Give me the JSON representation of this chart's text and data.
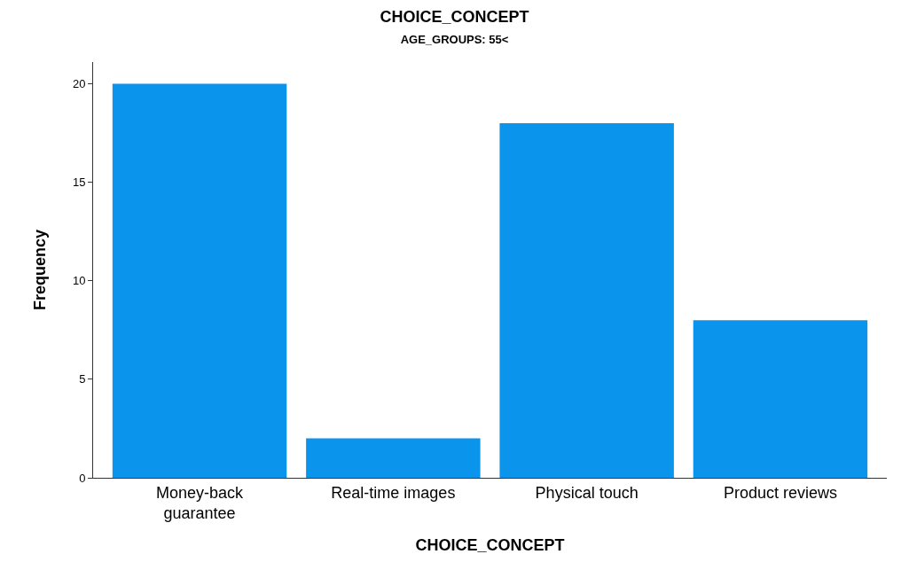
{
  "chart_data": {
    "type": "bar",
    "title": "CHOICE_CONCEPT",
    "subtitle": "AGE_GROUPS: 55<",
    "xlabel": "CHOICE_CONCEPT",
    "ylabel": "Frequency",
    "categories": [
      "Money-back\nguarantee",
      "Real-time images",
      "Physical touch",
      "Product reviews"
    ],
    "values": [
      20,
      2,
      18,
      8
    ],
    "color": "#0a94ec",
    "ylim": [
      0,
      21.1
    ],
    "yticks": [
      0,
      5,
      10,
      15,
      20
    ],
    "grid": false
  }
}
